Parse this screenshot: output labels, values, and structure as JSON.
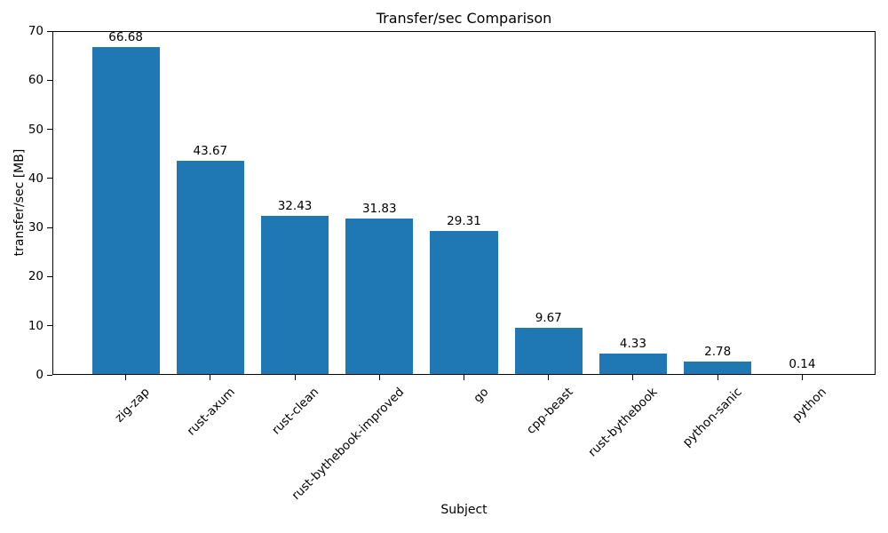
{
  "chart_data": {
    "type": "bar",
    "title": "Transfer/sec Comparison",
    "xlabel": "Subject",
    "ylabel": "transfer/sec [MB]",
    "categories": [
      "zig-zap",
      "rust-axum",
      "rust-clean",
      "rust-bythebook-improved",
      "go",
      "cpp-beast",
      "rust-bythebook",
      "python-sanic",
      "python"
    ],
    "values": [
      66.68,
      43.67,
      32.43,
      31.83,
      29.31,
      9.67,
      4.33,
      2.78,
      0.14
    ],
    "value_labels": [
      "66.68",
      "43.67",
      "32.43",
      "31.83",
      "29.31",
      "9.67",
      "4.33",
      "2.78",
      "0.14"
    ],
    "ylim": [
      0,
      70
    ],
    "yticks": [
      0,
      10,
      20,
      30,
      40,
      50,
      60,
      70
    ],
    "bar_color": "#1f77b4",
    "text_color": "#000000",
    "grid": false,
    "legend": "none",
    "x_tick_rotation_deg": 45
  }
}
